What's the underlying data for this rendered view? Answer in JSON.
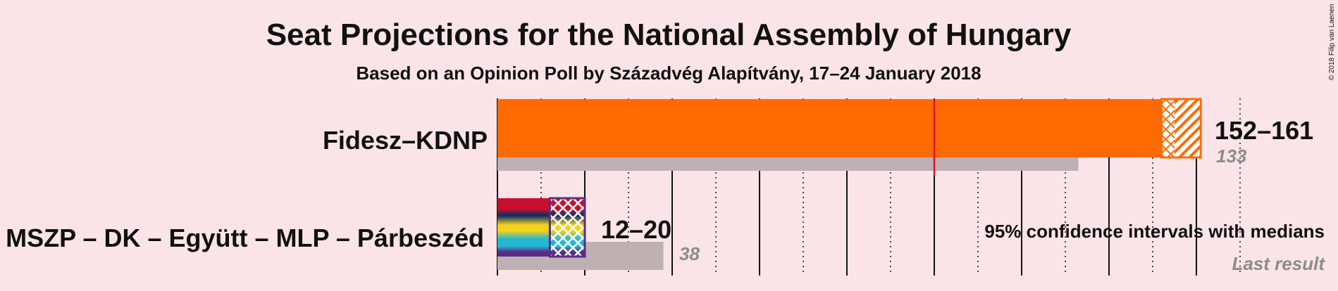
{
  "chart_data": {
    "type": "bar",
    "title": "Seat Projections for the National Assembly of Hungary",
    "subtitle": "Based on an Opinion Poll by Századvég Alapítvány, 17–24 January 2018",
    "majority": 100,
    "grid_minor_step": 10,
    "grid_major_step": 20,
    "series": [
      {
        "name": "Fidesz–KDNP",
        "ci_low": 152,
        "ci_high": 161,
        "median": 155,
        "last_result": 133,
        "range_label": "152–161",
        "last_label": "133",
        "colors": [
          "#ff6a00"
        ]
      },
      {
        "name": "MSZP – DK – Együtt – MLP – Párbeszéd",
        "ci_low": 12,
        "ci_high": 20,
        "median": 13,
        "last_result": 38,
        "range_label": "12–20",
        "last_label": "38",
        "colors": [
          "#c8102e",
          "#0a2d66",
          "#f2d21b",
          "#21b8d6",
          "#5b2c83"
        ]
      }
    ],
    "legend": {
      "ci": "95% confidence intervals with medians",
      "last": "Last result"
    },
    "copyright": "© 2018 Filip van Laenen"
  }
}
